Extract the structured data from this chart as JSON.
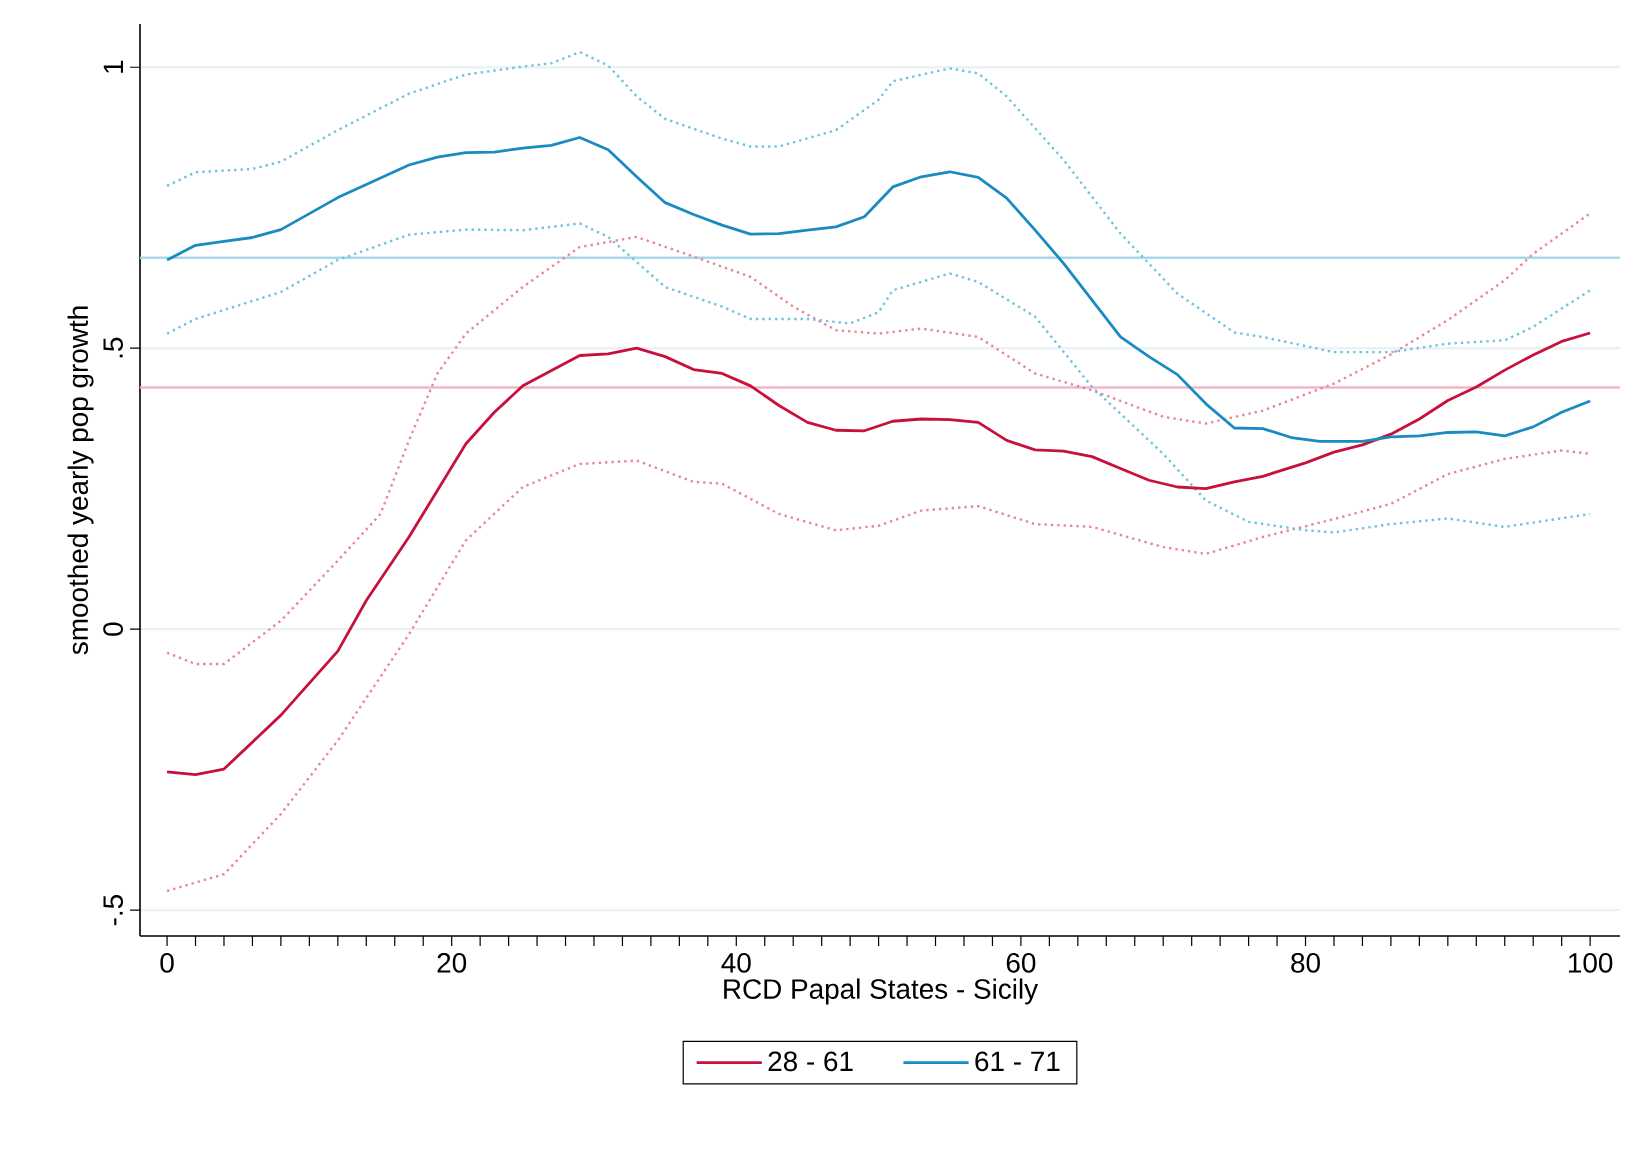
{
  "chart_data": {
    "type": "line",
    "xlabel": "RCD Papal States - Sicily",
    "ylabel": "smoothed yearly  pop growth",
    "xlim": [
      -1.9,
      102.1
    ],
    "ylim": [
      -0.546,
      1.077
    ],
    "xticks": [
      0,
      {
        "value": 2,
        "label": null
      },
      {
        "value": 4,
        "label": null
      },
      {
        "value": 6,
        "label": null
      },
      {
        "value": 8,
        "label": null
      },
      {
        "value": 10,
        "label": null
      },
      {
        "value": 12,
        "label": null
      },
      {
        "value": 14,
        "label": null
      },
      {
        "value": 16,
        "label": null
      },
      {
        "value": 18,
        "label": null
      },
      20,
      {
        "value": 22,
        "label": null
      },
      {
        "value": 24,
        "label": null
      },
      {
        "value": 26,
        "label": null
      },
      {
        "value": 28,
        "label": null
      },
      {
        "value": 30,
        "label": null
      },
      {
        "value": 32,
        "label": null
      },
      {
        "value": 34,
        "label": null
      },
      {
        "value": 36,
        "label": null
      },
      {
        "value": 38,
        "label": null
      },
      40,
      {
        "value": 42,
        "label": null
      },
      {
        "value": 44,
        "label": null
      },
      {
        "value": 46,
        "label": null
      },
      {
        "value": 48,
        "label": null
      },
      {
        "value": 50,
        "label": null
      },
      {
        "value": 52,
        "label": null
      },
      {
        "value": 54,
        "label": null
      },
      {
        "value": 56,
        "label": null
      },
      {
        "value": 58,
        "label": null
      },
      60,
      {
        "value": 62,
        "label": null
      },
      {
        "value": 64,
        "label": null
      },
      {
        "value": 66,
        "label": null
      },
      {
        "value": 68,
        "label": null
      },
      {
        "value": 70,
        "label": null
      },
      {
        "value": 72,
        "label": null
      },
      {
        "value": 74,
        "label": null
      },
      {
        "value": 76,
        "label": null
      },
      {
        "value": 78,
        "label": null
      },
      80,
      {
        "value": 82,
        "label": null
      },
      {
        "value": 84,
        "label": null
      },
      {
        "value": 86,
        "label": null
      },
      {
        "value": 88,
        "label": null
      },
      {
        "value": 90,
        "label": null
      },
      {
        "value": 92,
        "label": null
      },
      {
        "value": 94,
        "label": null
      },
      {
        "value": 96,
        "label": null
      },
      {
        "value": 98,
        "label": null
      },
      100
    ],
    "yticks": [
      {
        "value": -0.5,
        "label": "-.5"
      },
      0,
      {
        "value": 0.5,
        "label": ".5"
      },
      1
    ],
    "grid": "y",
    "legend": "bottom",
    "ref_lines": [
      {
        "axis": "y",
        "value": 0.661,
        "color": "#a8d8ea"
      },
      {
        "axis": "y",
        "value": 0.43,
        "color": "#f2b6c6"
      }
    ],
    "series": [
      {
        "name": "28 - 61",
        "color": "#c8103c",
        "line_style": "solid",
        "x": [
          0,
          2,
          4,
          8,
          12,
          14,
          17,
          21,
          23,
          25,
          29,
          31,
          33,
          35,
          37,
          39,
          41,
          43,
          45,
          47,
          49,
          51,
          53,
          55,
          57,
          59,
          61,
          63,
          65,
          67,
          69,
          71,
          73,
          75,
          77,
          80,
          82,
          84,
          86,
          88,
          90,
          92,
          94,
          96,
          98,
          100
        ],
        "values": [
          -0.254,
          -0.259,
          -0.249,
          -0.153,
          -0.039,
          0.051,
          0.164,
          0.33,
          0.386,
          0.433,
          0.487,
          0.49,
          0.5,
          0.485,
          0.462,
          0.455,
          0.433,
          0.398,
          0.368,
          0.354,
          0.353,
          0.37,
          0.374,
          0.373,
          0.368,
          0.336,
          0.319,
          0.317,
          0.307,
          0.286,
          0.265,
          0.253,
          0.25,
          0.262,
          0.272,
          0.296,
          0.315,
          0.328,
          0.347,
          0.374,
          0.407,
          0.431,
          0.461,
          0.488,
          0.512,
          0.527
        ]
      },
      {
        "name": "61 - 71",
        "color": "#1a8bc0",
        "line_style": "solid",
        "x": [
          0,
          2,
          4,
          6,
          8,
          12,
          17,
          19,
          21,
          23,
          25,
          27,
          29,
          31,
          33,
          35,
          37,
          39,
          41,
          43,
          45,
          47,
          49,
          51,
          53,
          55,
          57,
          59,
          61,
          63,
          67,
          69,
          71,
          73,
          75,
          77,
          79,
          81,
          84,
          86,
          88,
          90,
          92,
          94,
          96,
          98,
          100
        ],
        "values": [
          0.657,
          0.683,
          0.69,
          0.697,
          0.711,
          0.768,
          0.826,
          0.84,
          0.848,
          0.849,
          0.856,
          0.861,
          0.875,
          0.853,
          0.805,
          0.759,
          0.738,
          0.719,
          0.703,
          0.704,
          0.71,
          0.716,
          0.734,
          0.787,
          0.805,
          0.814,
          0.804,
          0.767,
          0.71,
          0.651,
          0.52,
          0.485,
          0.453,
          0.401,
          0.358,
          0.357,
          0.341,
          0.334,
          0.334,
          0.342,
          0.344,
          0.35,
          0.351,
          0.344,
          0.36,
          0.386,
          0.406
        ]
      },
      {
        "color": "#e8859e",
        "line_style": "dotted",
        "x": [
          0,
          2,
          4,
          8,
          12,
          15,
          17,
          19,
          21,
          25,
          29,
          33,
          37,
          41,
          44,
          47,
          50,
          53,
          57,
          61,
          65,
          70,
          73,
          77,
          82,
          86,
          90,
          94,
          96,
          100
        ],
        "values": [
          -0.042,
          -0.062,
          -0.062,
          0.015,
          0.122,
          0.205,
          0.336,
          0.455,
          0.526,
          0.609,
          0.68,
          0.698,
          0.663,
          0.627,
          0.574,
          0.532,
          0.526,
          0.535,
          0.52,
          0.455,
          0.425,
          0.378,
          0.366,
          0.389,
          0.437,
          0.489,
          0.55,
          0.621,
          0.668,
          0.74
        ]
      },
      {
        "color": "#e8859e",
        "line_style": "dotted",
        "x": [
          0,
          4,
          8,
          12,
          17,
          21,
          25,
          29,
          33,
          37,
          39,
          43,
          47,
          50,
          53,
          57,
          61,
          65,
          70,
          73,
          77,
          82,
          86,
          90,
          94,
          98,
          100
        ],
        "values": [
          -0.466,
          -0.436,
          -0.329,
          -0.198,
          -0.009,
          0.158,
          0.253,
          0.294,
          0.3,
          0.262,
          0.259,
          0.205,
          0.176,
          0.184,
          0.211,
          0.219,
          0.187,
          0.182,
          0.146,
          0.134,
          0.164,
          0.196,
          0.223,
          0.276,
          0.303,
          0.318,
          0.312
        ]
      },
      {
        "color": "#6ec3df",
        "line_style": "dotted",
        "x": [
          0,
          2,
          6,
          8,
          12,
          17,
          21,
          25,
          27,
          29,
          31,
          33,
          35,
          39,
          41,
          43,
          47,
          50,
          51,
          55,
          57,
          59,
          63,
          67,
          71,
          75,
          77,
          82,
          86,
          90,
          94,
          96,
          100
        ],
        "values": [
          0.789,
          0.813,
          0.819,
          0.832,
          0.888,
          0.953,
          0.987,
          1.001,
          1.007,
          1.027,
          1.003,
          0.948,
          0.908,
          0.873,
          0.859,
          0.859,
          0.888,
          0.942,
          0.975,
          0.998,
          0.989,
          0.948,
          0.835,
          0.704,
          0.597,
          0.528,
          0.52,
          0.493,
          0.493,
          0.508,
          0.514,
          0.538,
          0.603
        ]
      },
      {
        "color": "#6ec3df",
        "line_style": "dotted",
        "x": [
          0,
          2,
          8,
          12,
          17,
          21,
          25,
          29,
          31,
          35,
          39,
          41,
          45,
          48,
          50,
          51,
          55,
          57,
          61,
          65,
          70,
          73,
          76,
          80,
          82,
          86,
          90,
          94,
          100
        ],
        "values": [
          0.526,
          0.552,
          0.6,
          0.657,
          0.702,
          0.711,
          0.71,
          0.722,
          0.698,
          0.609,
          0.574,
          0.552,
          0.552,
          0.544,
          0.564,
          0.603,
          0.633,
          0.618,
          0.556,
          0.431,
          0.312,
          0.229,
          0.191,
          0.176,
          0.172,
          0.187,
          0.197,
          0.182,
          0.205
        ]
      }
    ]
  }
}
